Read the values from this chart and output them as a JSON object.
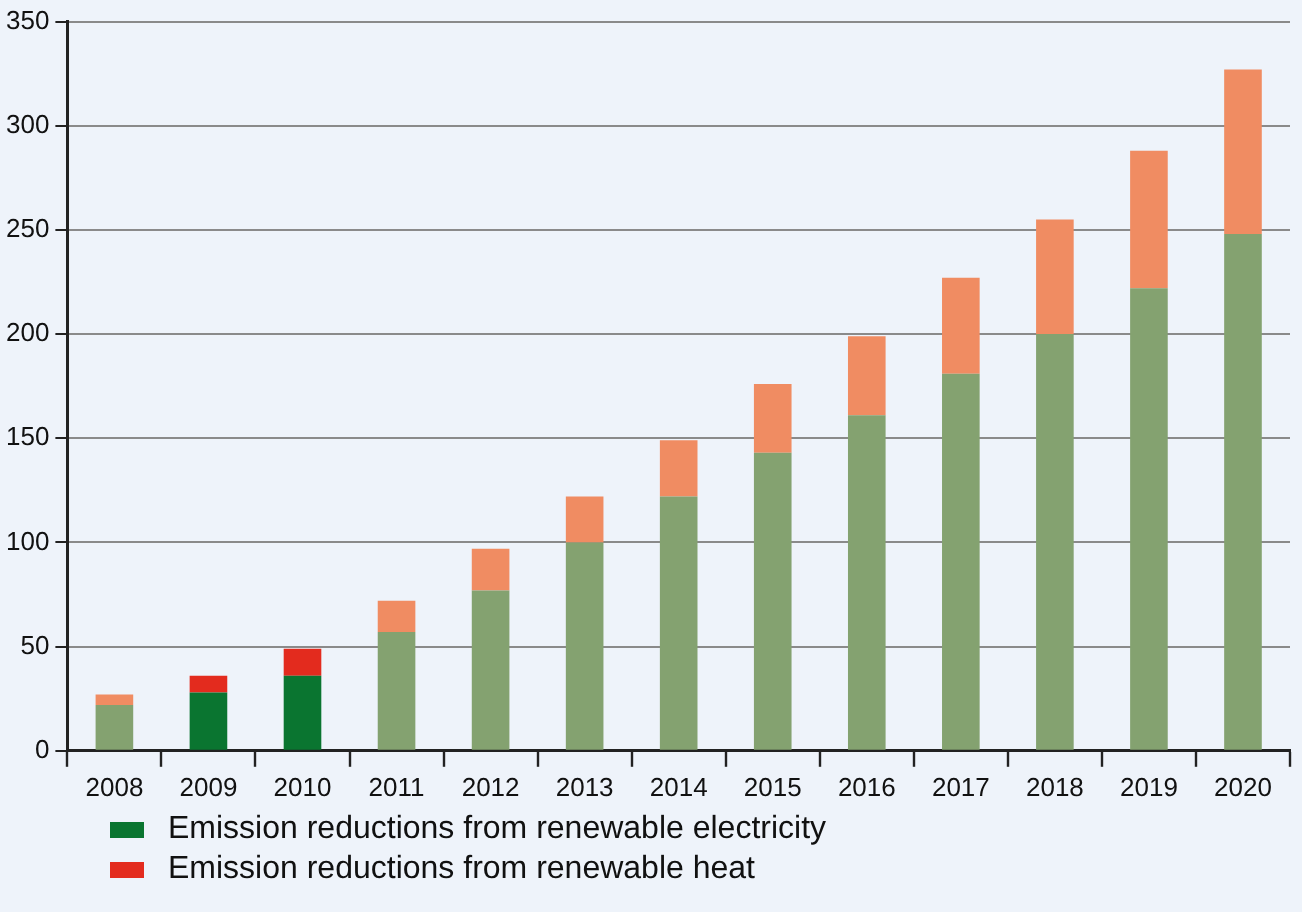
{
  "chart_data": {
    "type": "bar",
    "stacked": true,
    "categories": [
      "2008",
      "2009",
      "2010",
      "2011",
      "2012",
      "2013",
      "2014",
      "2015",
      "2016",
      "2017",
      "2018",
      "2019",
      "2020"
    ],
    "series": [
      {
        "name": "Emission reductions from renewable electricity",
        "color": "#0a7530",
        "colors": [
          "#84a270",
          "#0a7530",
          "#0a7530",
          "#84a270",
          "#84a270",
          "#84a270",
          "#84a270",
          "#84a270",
          "#84a270",
          "#84a270",
          "#84a270",
          "#84a270",
          "#84a270"
        ],
        "values": [
          22,
          28,
          36,
          57,
          77,
          100,
          122,
          143,
          161,
          181,
          200,
          222,
          248
        ]
      },
      {
        "name": "Emission reductions from renewable heat",
        "color": "#e32b1e",
        "colors": [
          "#f08c62",
          "#e32b1e",
          "#e32b1e",
          "#f08c62",
          "#f08c62",
          "#f08c62",
          "#f08c62",
          "#f08c62",
          "#f08c62",
          "#f08c62",
          "#f08c62",
          "#f08c62",
          "#f08c62"
        ],
        "values": [
          5,
          8,
          13,
          15,
          20,
          22,
          27,
          33,
          38,
          46,
          55,
          66,
          79
        ]
      }
    ],
    "ylim": [
      0,
      350
    ],
    "yticks": [
      0,
      50,
      100,
      150,
      200,
      250,
      300,
      350
    ],
    "grid": "y",
    "legend": "bottom"
  }
}
